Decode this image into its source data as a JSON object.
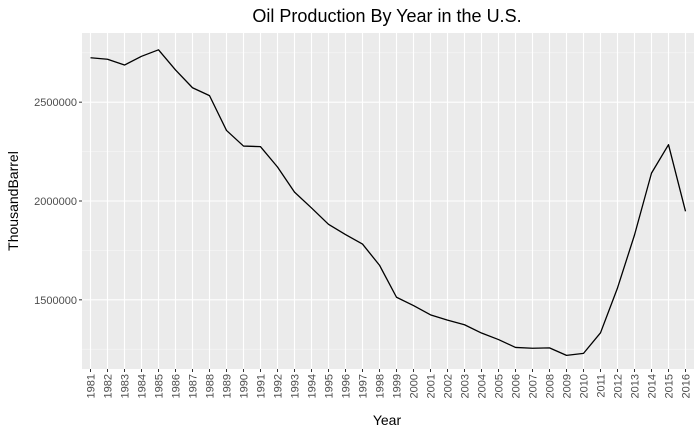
{
  "chart_data": {
    "type": "line",
    "title": "Oil Production By Year in the U.S.",
    "xlabel": "Year",
    "ylabel": "ThousandBarrel",
    "ylim": [
      1150000,
      2850000
    ],
    "yticks": [
      1500000,
      2000000,
      2500000
    ],
    "ytick_labels": [
      "1500000",
      "2000000",
      "2500000"
    ],
    "grid": true,
    "legend": "none",
    "series_color": "#000000",
    "panel_color": "#ebebeb",
    "x": [
      1981,
      1982,
      1983,
      1984,
      1985,
      1986,
      1987,
      1988,
      1989,
      1990,
      1991,
      1992,
      1993,
      1994,
      1995,
      1996,
      1997,
      1998,
      1999,
      2000,
      2001,
      2002,
      2003,
      2004,
      2005,
      2006,
      2007,
      2008,
      2009,
      2010,
      2011,
      2012,
      2013,
      2014,
      2015,
      2016
    ],
    "xtick_labels": [
      "1981",
      "1982",
      "1983",
      "1984",
      "1985",
      "1986",
      "1987",
      "1988",
      "1989",
      "1990",
      "1991",
      "1992",
      "1993",
      "1994",
      "1995",
      "1996",
      "1997",
      "1998",
      "1999",
      "2000",
      "2001",
      "2002",
      "2003",
      "2004",
      "2005",
      "2006",
      "2007",
      "2008",
      "2009",
      "2010",
      "2011",
      "2012",
      "2013",
      "2014",
      "2015",
      "2016"
    ],
    "values": [
      2725000,
      2717000,
      2688000,
      2732000,
      2765000,
      2663000,
      2573000,
      2533000,
      2357000,
      2278000,
      2275000,
      2172000,
      2045000,
      1965000,
      1882000,
      1830000,
      1782000,
      1675000,
      1513000,
      1471000,
      1424000,
      1397000,
      1374000,
      1332000,
      1299000,
      1259000,
      1255000,
      1257000,
      1219000,
      1229000,
      1333000,
      1560000,
      1828000,
      2141000,
      2285000,
      1948000
    ]
  }
}
